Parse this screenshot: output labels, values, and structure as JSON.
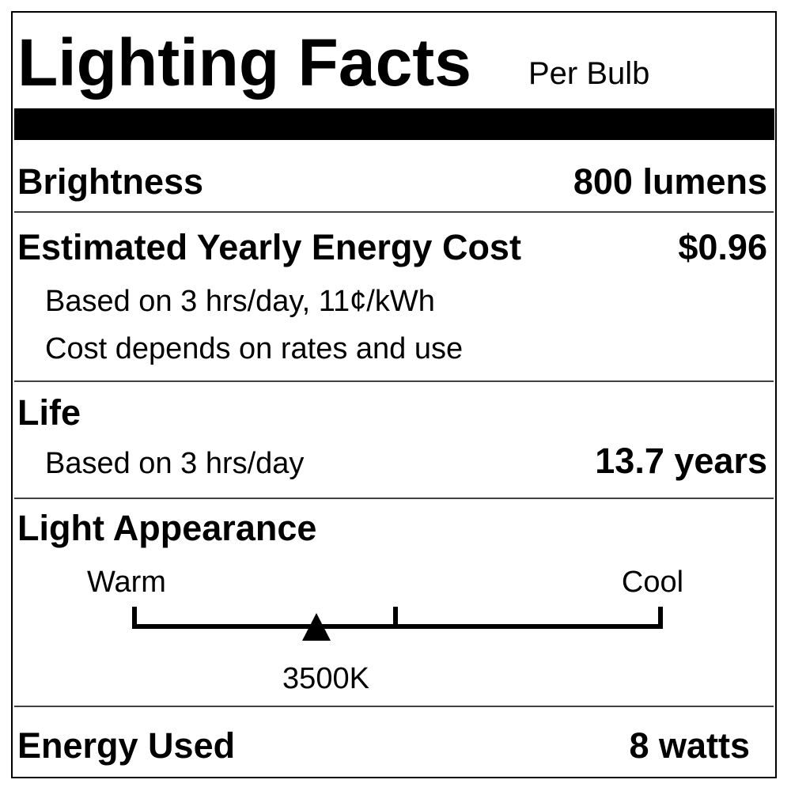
{
  "header": {
    "title": "Lighting Facts",
    "subtitle": "Per Bulb"
  },
  "brightness": {
    "label": "Brightness",
    "value": "800 lumens"
  },
  "energy_cost": {
    "label": "Estimated Yearly Energy Cost",
    "value": "$0.96",
    "notes": [
      "Based on 3 hrs/day, 11¢/kWh",
      "Cost depends on rates and use"
    ]
  },
  "life": {
    "label": "Life",
    "note": "Based on 3 hrs/day",
    "value": "13.7 years"
  },
  "light_appearance": {
    "label": "Light Appearance",
    "scale_start": "Warm",
    "scale_end": "Cool",
    "value": "3500K"
  },
  "energy_used": {
    "label": "Energy Used",
    "value": "8 watts"
  }
}
